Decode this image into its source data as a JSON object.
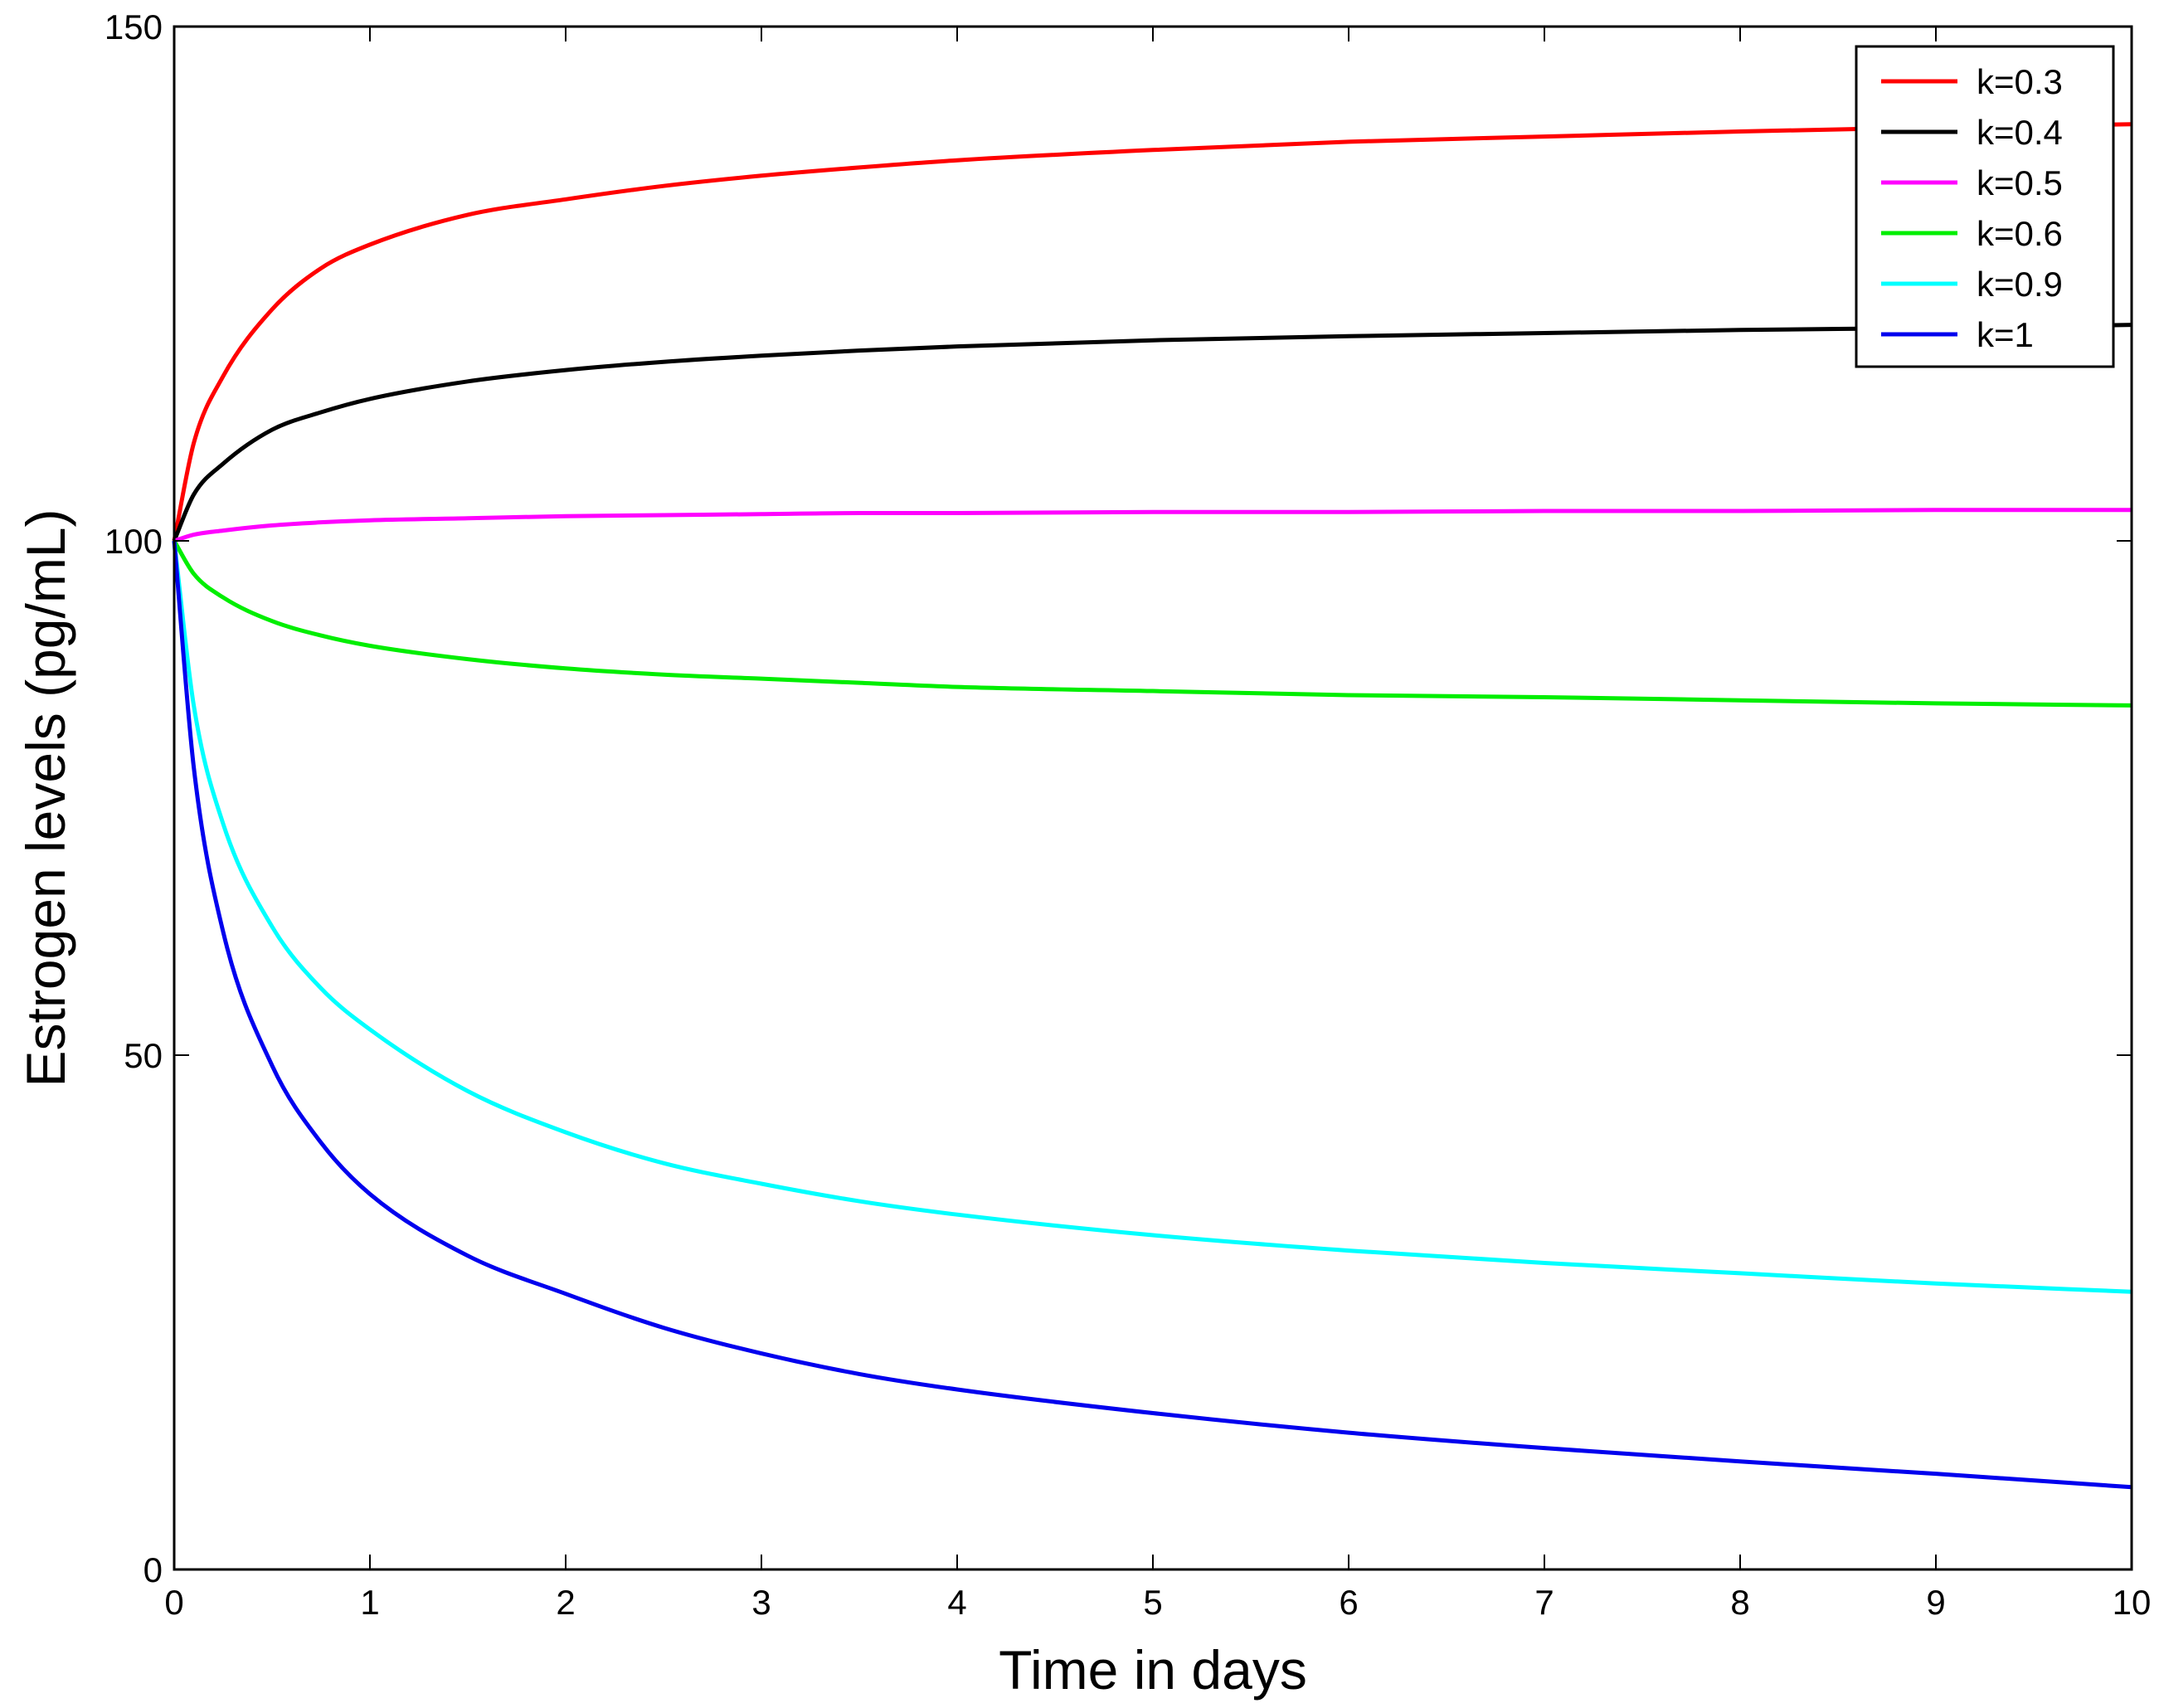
{
  "chart_data": {
    "type": "line",
    "title": "",
    "xlabel": "Time in days",
    "ylabel": "Estrogen levels (pg/mL)",
    "xlim": [
      0,
      10
    ],
    "ylim": [
      0,
      150
    ],
    "xticks": [
      0,
      1,
      2,
      3,
      4,
      5,
      6,
      7,
      8,
      9,
      10
    ],
    "xtick_labels": [
      "0",
      "1",
      "2",
      "3",
      "4",
      "5",
      "6",
      "7",
      "8",
      "9",
      "10"
    ],
    "yticks": [
      0,
      50,
      100,
      150
    ],
    "ytick_labels": [
      "0",
      "50",
      "100",
      "150"
    ],
    "grid": false,
    "legend_position": "top-right",
    "x": [
      0,
      0.1,
      0.25,
      0.5,
      0.75,
      1,
      1.5,
      2,
      2.5,
      3,
      3.5,
      4,
      5,
      6,
      7,
      8,
      9,
      10
    ],
    "series": [
      {
        "name": "k=0.3",
        "color": "#ff0000",
        "values": [
          100,
          109.5,
          116,
          122.5,
          126.5,
          128.8,
          131.7,
          133.2,
          134.5,
          135.5,
          136.3,
          137,
          138,
          138.8,
          139.3,
          139.8,
          140.2,
          140.5
        ]
      },
      {
        "name": "k=0.4",
        "color": "#000000",
        "values": [
          100,
          104.5,
          107.5,
          110.8,
          112.5,
          113.8,
          115.5,
          116.6,
          117.4,
          118,
          118.5,
          118.9,
          119.5,
          119.9,
          120.2,
          120.5,
          120.7,
          121
        ]
      },
      {
        "name": "k=0.5",
        "color": "#ff00ff",
        "values": [
          100,
          100.6,
          101,
          101.5,
          101.8,
          102,
          102.2,
          102.4,
          102.5,
          102.6,
          102.7,
          102.7,
          102.8,
          102.8,
          102.9,
          102.9,
          103,
          103
        ]
      },
      {
        "name": "k=0.6",
        "color": "#00ee00",
        "values": [
          100,
          96.8,
          94.5,
          92.2,
          90.8,
          89.8,
          88.5,
          87.6,
          87,
          86.6,
          86.2,
          85.8,
          85.4,
          85,
          84.8,
          84.5,
          84.2,
          84
        ]
      },
      {
        "name": "k=0.9",
        "color": "#00ffff",
        "values": [
          100,
          84,
          72.5,
          62.5,
          56.5,
          52.5,
          46.5,
          42.5,
          39.5,
          37.5,
          35.8,
          34.5,
          32.5,
          31,
          29.8,
          28.8,
          27.8,
          27
        ]
      },
      {
        "name": "k=1",
        "color": "#0000ee",
        "values": [
          100,
          78,
          62,
          49,
          41.5,
          36.5,
          30.5,
          26.8,
          23.5,
          21,
          19,
          17.5,
          15.2,
          13.3,
          11.8,
          10.5,
          9.3,
          8
        ]
      }
    ]
  }
}
